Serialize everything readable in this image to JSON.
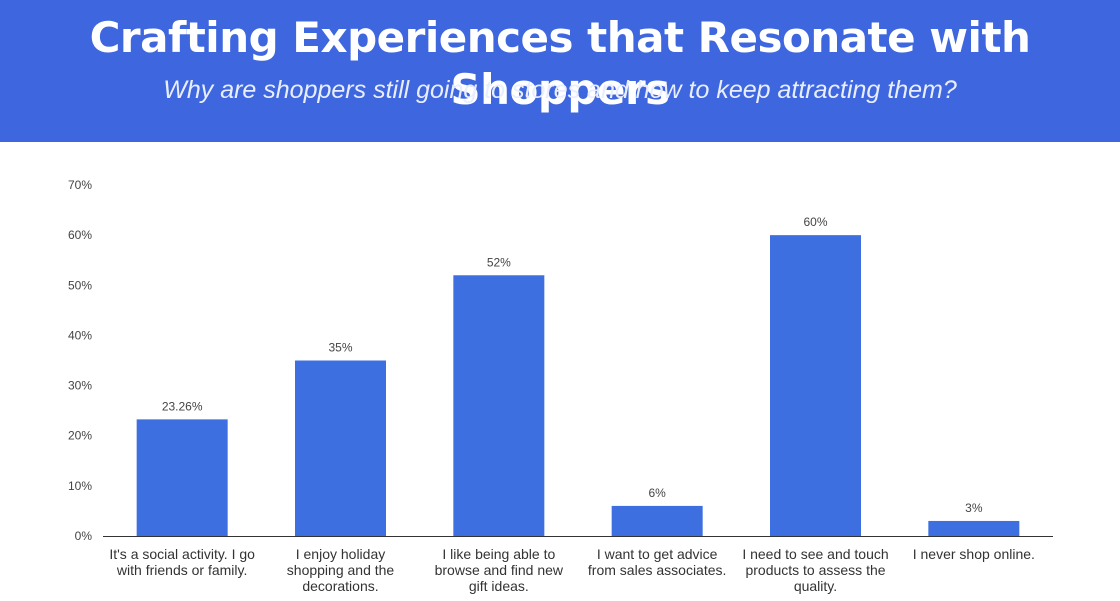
{
  "header": {
    "title": "Crafting Experiences that Resonate with Shoppers",
    "subtitle": "Why are shoppers still going to stores and how to keep attracting them?"
  },
  "colors": {
    "banner": "#3e67df",
    "bar": "#3e6fe0",
    "axis": "#444444"
  },
  "chart_data": {
    "type": "bar",
    "title": "",
    "xlabel": "",
    "ylabel": "",
    "categories": [
      "It's a social activity. I go with friends or family.",
      "I enjoy holiday shopping and the decorations.",
      "I like being able to browse and find new gift ideas.",
      "I want to get advice from sales associates.",
      "I need to see and touch products to assess the quality.",
      "I never shop online."
    ],
    "values": [
      23.26,
      35,
      52,
      6,
      60,
      3
    ],
    "data_labels": [
      "23.26%",
      "35%",
      "52%",
      "6%",
      "60%",
      "3%"
    ],
    "ylim": [
      0,
      70
    ],
    "yticks": [
      0,
      10,
      20,
      30,
      40,
      50,
      60,
      70
    ],
    "ytick_labels": [
      "0%",
      "10%",
      "20%",
      "30%",
      "40%",
      "50%",
      "60%",
      "70%"
    ],
    "grid": false,
    "legend": "none"
  }
}
